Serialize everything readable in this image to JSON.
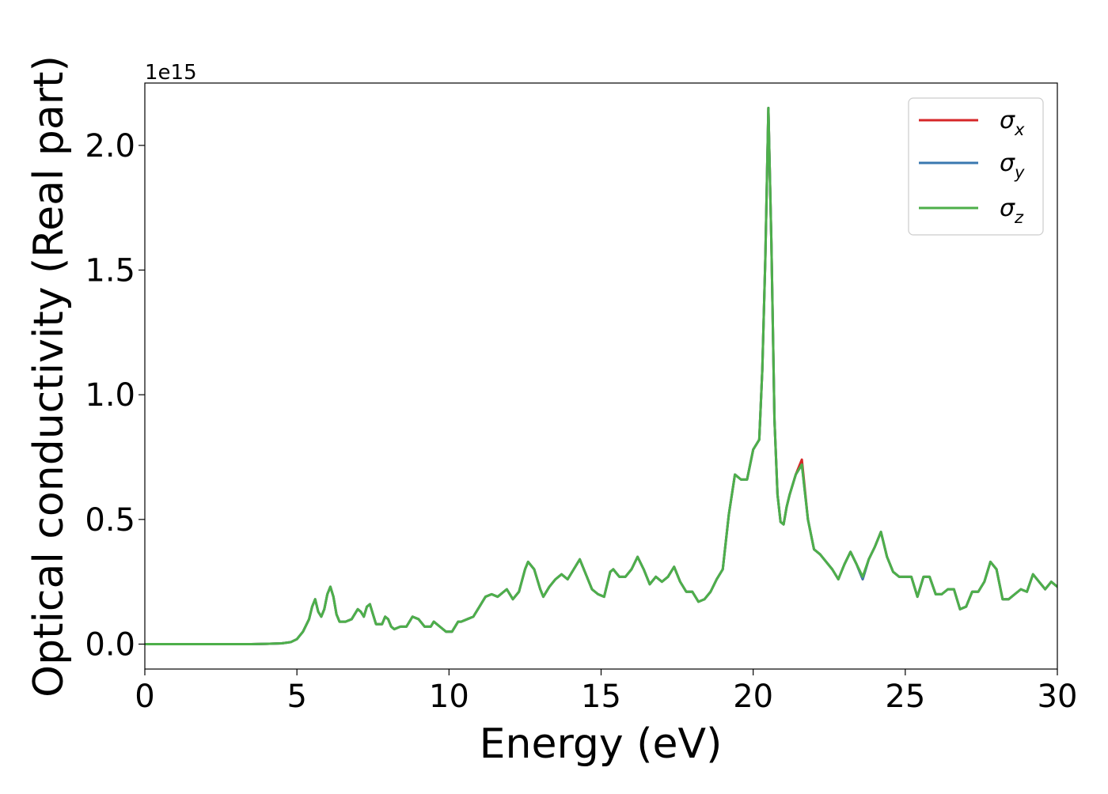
{
  "chart_data": {
    "type": "line",
    "xlabel": "Energy (eV)",
    "ylabel": "Optical conductivity (Real part)",
    "y_offset_text": "1e15",
    "y_scale": 1000000000000000.0,
    "xlim": [
      0,
      30
    ],
    "ylim": [
      -0.1,
      2.25
    ],
    "xticks": [
      0,
      5,
      10,
      15,
      20,
      25,
      30
    ],
    "xtick_labels": [
      "0",
      "5",
      "10",
      "15",
      "20",
      "25",
      "30"
    ],
    "yticks": [
      0.0,
      0.5,
      1.0,
      1.5,
      2.0
    ],
    "ytick_labels": [
      "0.0",
      "0.5",
      "1.0",
      "1.5",
      "2.0"
    ],
    "grid": false,
    "legend_position": "top-right",
    "x": [
      0,
      0.5,
      1,
      1.5,
      2,
      2.5,
      3,
      3.5,
      4,
      4.5,
      4.8,
      5,
      5.2,
      5.4,
      5.5,
      5.6,
      5.7,
      5.8,
      5.9,
      6,
      6.1,
      6.2,
      6.3,
      6.4,
      6.5,
      6.6,
      6.8,
      7,
      7.1,
      7.2,
      7.3,
      7.4,
      7.5,
      7.6,
      7.8,
      7.9,
      8,
      8.1,
      8.2,
      8.4,
      8.6,
      8.8,
      9,
      9.2,
      9.4,
      9.5,
      9.7,
      9.9,
      10.1,
      10.3,
      10.4,
      10.6,
      10.8,
      11,
      11.2,
      11.4,
      11.6,
      11.8,
      11.9,
      12.1,
      12.3,
      12.5,
      12.6,
      12.8,
      13,
      13.1,
      13.3,
      13.5,
      13.7,
      13.9,
      14.1,
      14.3,
      14.5,
      14.7,
      14.9,
      15.1,
      15.3,
      15.4,
      15.6,
      15.8,
      16,
      16.2,
      16.4,
      16.6,
      16.8,
      17,
      17.2,
      17.4,
      17.6,
      17.8,
      18,
      18.2,
      18.4,
      18.6,
      18.8,
      19,
      19.2,
      19.4,
      19.6,
      19.8,
      20,
      20.2,
      20.3,
      20.4,
      20.5,
      20.6,
      20.7,
      20.8,
      20.9,
      21,
      21.1,
      21.2,
      21.4,
      21.6,
      21.8,
      22,
      22.2,
      22.4,
      22.6,
      22.8,
      23,
      23.2,
      23.4,
      23.6,
      23.8,
      24,
      24.2,
      24.4,
      24.6,
      24.8,
      25,
      25.2,
      25.4,
      25.6,
      25.8,
      26,
      26.2,
      26.4,
      26.6,
      26.8,
      27,
      27.2,
      27.4,
      27.6,
      27.8,
      28,
      28.2,
      28.4,
      28.6,
      28.8,
      29,
      29.2,
      29.4,
      29.6,
      29.8,
      30
    ],
    "series": [
      {
        "name": "σx",
        "label_base": "σ",
        "label_sub": "x",
        "color": "#d62728",
        "values": [
          0,
          0,
          0,
          0,
          0,
          0,
          0,
          0,
          0.001,
          0.003,
          0.008,
          0.02,
          0.05,
          0.1,
          0.15,
          0.18,
          0.13,
          0.11,
          0.14,
          0.2,
          0.23,
          0.19,
          0.12,
          0.09,
          0.09,
          0.09,
          0.1,
          0.14,
          0.13,
          0.11,
          0.15,
          0.16,
          0.12,
          0.08,
          0.08,
          0.11,
          0.1,
          0.07,
          0.06,
          0.07,
          0.07,
          0.11,
          0.1,
          0.07,
          0.07,
          0.09,
          0.07,
          0.05,
          0.05,
          0.09,
          0.09,
          0.1,
          0.11,
          0.15,
          0.19,
          0.2,
          0.19,
          0.21,
          0.22,
          0.18,
          0.21,
          0.3,
          0.33,
          0.3,
          0.22,
          0.19,
          0.23,
          0.26,
          0.28,
          0.26,
          0.3,
          0.34,
          0.28,
          0.22,
          0.2,
          0.19,
          0.29,
          0.3,
          0.27,
          0.27,
          0.3,
          0.35,
          0.3,
          0.24,
          0.27,
          0.25,
          0.27,
          0.31,
          0.25,
          0.21,
          0.21,
          0.17,
          0.18,
          0.21,
          0.26,
          0.3,
          0.52,
          0.68,
          0.66,
          0.66,
          0.78,
          0.82,
          1.1,
          1.55,
          2.15,
          1.6,
          0.9,
          0.6,
          0.49,
          0.48,
          0.55,
          0.6,
          0.68,
          0.74,
          0.5,
          0.38,
          0.36,
          0.33,
          0.3,
          0.26,
          0.32,
          0.37,
          0.32,
          0.26,
          0.34,
          0.39,
          0.45,
          0.35,
          0.29,
          0.27,
          0.27,
          0.27,
          0.19,
          0.27,
          0.27,
          0.2,
          0.2,
          0.22,
          0.22,
          0.14,
          0.15,
          0.21,
          0.21,
          0.25,
          0.33,
          0.3,
          0.18,
          0.18,
          0.2,
          0.22,
          0.21,
          0.28,
          0.25,
          0.22,
          0.25,
          0.23
        ]
      },
      {
        "name": "σy",
        "label_base": "σ",
        "label_sub": "y",
        "color": "#3a78b0",
        "values": [
          0,
          0,
          0,
          0,
          0,
          0,
          0,
          0,
          0.001,
          0.003,
          0.008,
          0.02,
          0.05,
          0.1,
          0.15,
          0.18,
          0.13,
          0.11,
          0.14,
          0.2,
          0.23,
          0.19,
          0.12,
          0.09,
          0.09,
          0.09,
          0.1,
          0.14,
          0.13,
          0.11,
          0.15,
          0.16,
          0.12,
          0.08,
          0.08,
          0.11,
          0.1,
          0.07,
          0.06,
          0.07,
          0.07,
          0.11,
          0.1,
          0.07,
          0.07,
          0.09,
          0.07,
          0.05,
          0.05,
          0.09,
          0.09,
          0.1,
          0.11,
          0.15,
          0.19,
          0.2,
          0.19,
          0.21,
          0.22,
          0.18,
          0.21,
          0.3,
          0.33,
          0.3,
          0.22,
          0.19,
          0.23,
          0.26,
          0.28,
          0.26,
          0.3,
          0.34,
          0.28,
          0.22,
          0.2,
          0.19,
          0.29,
          0.3,
          0.27,
          0.27,
          0.3,
          0.35,
          0.3,
          0.24,
          0.27,
          0.25,
          0.27,
          0.31,
          0.25,
          0.21,
          0.21,
          0.17,
          0.18,
          0.21,
          0.26,
          0.3,
          0.52,
          0.68,
          0.66,
          0.66,
          0.78,
          0.82,
          1.1,
          1.55,
          2.15,
          1.6,
          0.9,
          0.6,
          0.49,
          0.48,
          0.55,
          0.6,
          0.68,
          0.72,
          0.5,
          0.38,
          0.36,
          0.33,
          0.3,
          0.26,
          0.32,
          0.37,
          0.32,
          0.26,
          0.34,
          0.39,
          0.45,
          0.35,
          0.29,
          0.27,
          0.27,
          0.27,
          0.19,
          0.27,
          0.27,
          0.2,
          0.2,
          0.22,
          0.22,
          0.14,
          0.15,
          0.21,
          0.21,
          0.25,
          0.33,
          0.3,
          0.18,
          0.18,
          0.2,
          0.22,
          0.21,
          0.28,
          0.25,
          0.22,
          0.25,
          0.23
        ]
      },
      {
        "name": "σz",
        "label_base": "σ",
        "label_sub": "z",
        "color": "#4daf4a",
        "values": [
          0,
          0,
          0,
          0,
          0,
          0,
          0,
          0,
          0.001,
          0.003,
          0.008,
          0.02,
          0.05,
          0.1,
          0.15,
          0.18,
          0.13,
          0.11,
          0.14,
          0.2,
          0.23,
          0.19,
          0.12,
          0.09,
          0.09,
          0.09,
          0.1,
          0.14,
          0.13,
          0.11,
          0.15,
          0.16,
          0.12,
          0.08,
          0.08,
          0.11,
          0.1,
          0.07,
          0.06,
          0.07,
          0.07,
          0.11,
          0.1,
          0.07,
          0.07,
          0.09,
          0.07,
          0.05,
          0.05,
          0.09,
          0.09,
          0.1,
          0.11,
          0.15,
          0.19,
          0.2,
          0.19,
          0.21,
          0.22,
          0.18,
          0.21,
          0.3,
          0.33,
          0.3,
          0.22,
          0.19,
          0.23,
          0.26,
          0.28,
          0.26,
          0.3,
          0.34,
          0.28,
          0.22,
          0.2,
          0.19,
          0.29,
          0.3,
          0.27,
          0.27,
          0.3,
          0.35,
          0.3,
          0.24,
          0.27,
          0.25,
          0.27,
          0.31,
          0.25,
          0.21,
          0.21,
          0.17,
          0.18,
          0.21,
          0.26,
          0.3,
          0.52,
          0.68,
          0.66,
          0.66,
          0.78,
          0.82,
          1.1,
          1.55,
          2.15,
          1.6,
          0.9,
          0.6,
          0.49,
          0.48,
          0.55,
          0.6,
          0.68,
          0.72,
          0.5,
          0.38,
          0.36,
          0.33,
          0.3,
          0.26,
          0.32,
          0.37,
          0.32,
          0.27,
          0.34,
          0.39,
          0.45,
          0.35,
          0.29,
          0.27,
          0.27,
          0.27,
          0.19,
          0.27,
          0.27,
          0.2,
          0.2,
          0.22,
          0.22,
          0.14,
          0.15,
          0.21,
          0.21,
          0.25,
          0.33,
          0.3,
          0.18,
          0.18,
          0.2,
          0.22,
          0.21,
          0.28,
          0.25,
          0.22,
          0.25,
          0.23
        ]
      }
    ]
  }
}
